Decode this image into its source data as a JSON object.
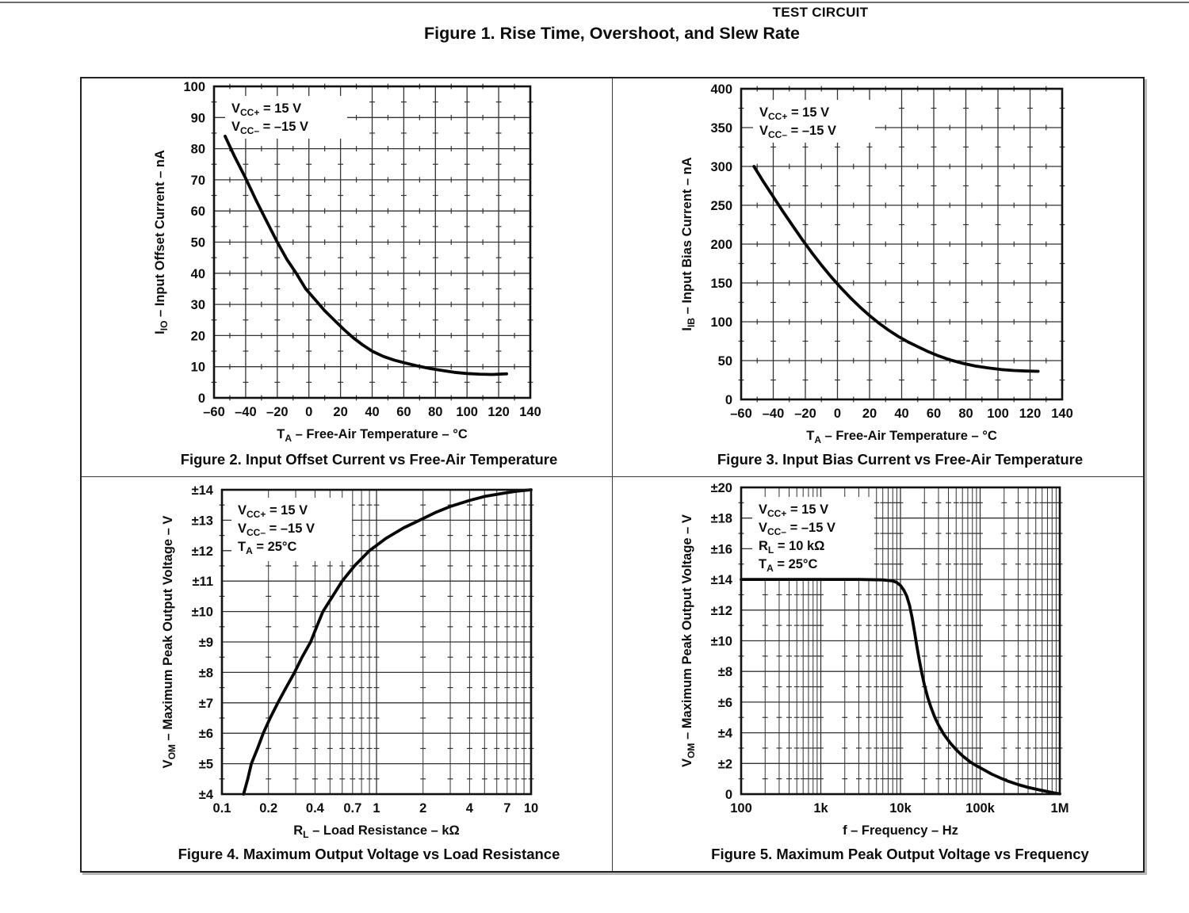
{
  "page": {
    "section_label": "TEST CIRCUIT",
    "figure1_title": "Figure 1. Rise Time, Overshoot, and Slew Rate"
  },
  "chart_data": [
    {
      "id": "figure2",
      "type": "line",
      "title": "Figure 2. Input Offset Current vs Free-Air Temperature",
      "xlabel": "T_{A} – Free-Air Temperature – °C",
      "ylabel": "I_{IO} – Input Offset Current – nA",
      "annotations": [
        "V_{CC+} = 15 V",
        "V_{CC–} = –15 V"
      ],
      "x_axis": {
        "scale": "linear",
        "min": -60,
        "max": 140,
        "ticks": [
          {
            "v": -60,
            "label": "–60"
          },
          {
            "v": -40,
            "label": "–40"
          },
          {
            "v": -20,
            "label": "–20"
          },
          {
            "v": 0,
            "label": "0"
          },
          {
            "v": 20,
            "label": "20"
          },
          {
            "v": 40,
            "label": "40"
          },
          {
            "v": 60,
            "label": "60"
          },
          {
            "v": 80,
            "label": "80"
          },
          {
            "v": 100,
            "label": "100"
          },
          {
            "v": 120,
            "label": "120"
          },
          {
            "v": 140,
            "label": "140"
          }
        ]
      },
      "y_axis": {
        "scale": "linear",
        "min": 0,
        "max": 100,
        "ticks": [
          {
            "v": 0,
            "label": "0"
          },
          {
            "v": 10,
            "label": "10"
          },
          {
            "v": 20,
            "label": "20"
          },
          {
            "v": 30,
            "label": "30"
          },
          {
            "v": 40,
            "label": "40"
          },
          {
            "v": 50,
            "label": "50"
          },
          {
            "v": 60,
            "label": "60"
          },
          {
            "v": 70,
            "label": "70"
          },
          {
            "v": 80,
            "label": "80"
          },
          {
            "v": 90,
            "label": "90"
          },
          {
            "v": 100,
            "label": "100"
          }
        ]
      },
      "series": [
        {
          "name": "input offset current",
          "points": [
            [
              -53,
              84
            ],
            [
              -47,
              77.5
            ],
            [
              -40,
              70.5
            ],
            [
              -33,
              63
            ],
            [
              -27,
              57
            ],
            [
              -20,
              50
            ],
            [
              -14,
              44.5
            ],
            [
              -8,
              40
            ],
            [
              -2,
              35
            ],
            [
              4,
              31.5
            ],
            [
              10,
              28
            ],
            [
              16,
              25
            ],
            [
              22,
              22
            ],
            [
              28,
              19.3
            ],
            [
              34,
              17
            ],
            [
              40,
              15
            ],
            [
              47,
              13.3
            ],
            [
              54,
              12.1
            ],
            [
              60,
              11.3
            ],
            [
              68,
              10.3
            ],
            [
              76,
              9.5
            ],
            [
              84,
              8.8
            ],
            [
              92,
              8.2
            ],
            [
              100,
              7.8
            ],
            [
              108,
              7.6
            ],
            [
              116,
              7.5
            ],
            [
              125,
              7.7
            ]
          ]
        }
      ]
    },
    {
      "id": "figure3",
      "type": "line",
      "title": "Figure 3. Input Bias Current vs Free-Air Temperature",
      "xlabel": "T_{A} – Free-Air Temperature – °C",
      "ylabel": "I_{IB} – Input Bias Current – nA",
      "annotations": [
        "V_{CC+} = 15 V",
        "V_{CC–} = –15 V"
      ],
      "x_axis": {
        "scale": "linear",
        "min": -60,
        "max": 140,
        "ticks": [
          {
            "v": -60,
            "label": "–60"
          },
          {
            "v": -40,
            "label": "–40"
          },
          {
            "v": -20,
            "label": "–20"
          },
          {
            "v": 0,
            "label": "0"
          },
          {
            "v": 20,
            "label": "20"
          },
          {
            "v": 40,
            "label": "40"
          },
          {
            "v": 60,
            "label": "60"
          },
          {
            "v": 80,
            "label": "80"
          },
          {
            "v": 100,
            "label": "100"
          },
          {
            "v": 120,
            "label": "120"
          },
          {
            "v": 140,
            "label": "140"
          }
        ]
      },
      "y_axis": {
        "scale": "linear",
        "min": 0,
        "max": 400,
        "ticks": [
          {
            "v": 0,
            "label": "0"
          },
          {
            "v": 50,
            "label": "50"
          },
          {
            "v": 100,
            "label": "100"
          },
          {
            "v": 150,
            "label": "150"
          },
          {
            "v": 200,
            "label": "200"
          },
          {
            "v": 250,
            "label": "250"
          },
          {
            "v": 300,
            "label": "300"
          },
          {
            "v": 350,
            "label": "350"
          },
          {
            "v": 400,
            "label": "400"
          }
        ]
      },
      "series": [
        {
          "name": "input bias current",
          "points": [
            [
              -52,
              300
            ],
            [
              -46,
              280
            ],
            [
              -40,
              261
            ],
            [
              -34,
              242
            ],
            [
              -28,
              224
            ],
            [
              -22,
              206
            ],
            [
              -16,
              189
            ],
            [
              -10,
              173
            ],
            [
              -4,
              158
            ],
            [
              2,
              144
            ],
            [
              8,
              131
            ],
            [
              14,
              119
            ],
            [
              20,
              108
            ],
            [
              26,
              98
            ],
            [
              32,
              89
            ],
            [
              38,
              81
            ],
            [
              44,
              74
            ],
            [
              50,
              68
            ],
            [
              56,
              62
            ],
            [
              63,
              56
            ],
            [
              70,
              51
            ],
            [
              78,
              46.5
            ],
            [
              86,
              43
            ],
            [
              94,
              40.5
            ],
            [
              102,
              38.5
            ],
            [
              110,
              37.2
            ],
            [
              118,
              36.5
            ],
            [
              125,
              36.2
            ]
          ]
        }
      ]
    },
    {
      "id": "figure4",
      "type": "line",
      "title": "Figure 4. Maximum Output Voltage vs Load Resistance",
      "xlabel": "R_{L} – Load Resistance – kΩ",
      "ylabel": "V_{OM} – Maximum Peak Output Voltage – V",
      "annotations": [
        "V_{CC+} = 15 V",
        "V_{CC–} = –15 V",
        "T_{A} = 25°C"
      ],
      "x_axis": {
        "scale": "log",
        "min": 0.1,
        "max": 10,
        "ticks": [
          {
            "v": 0.1,
            "label": "0.1"
          },
          {
            "v": 0.2,
            "label": "0.2"
          },
          {
            "v": 0.4,
            "label": "0.4"
          },
          {
            "v": 0.7,
            "label": "0.7"
          },
          {
            "v": 1,
            "label": "1"
          },
          {
            "v": 2,
            "label": "2"
          },
          {
            "v": 4,
            "label": "4"
          },
          {
            "v": 7,
            "label": "7"
          },
          {
            "v": 10,
            "label": "10"
          }
        ]
      },
      "y_axis": {
        "scale": "linear",
        "min": 4,
        "max": 14,
        "ticks": [
          {
            "v": 4,
            "label": "±4"
          },
          {
            "v": 5,
            "label": "±5"
          },
          {
            "v": 6,
            "label": "±6"
          },
          {
            "v": 7,
            "label": "±7"
          },
          {
            "v": 8,
            "label": "±8"
          },
          {
            "v": 9,
            "label": "±9"
          },
          {
            "v": 10,
            "label": "±10"
          },
          {
            "v": 11,
            "label": "±11"
          },
          {
            "v": 12,
            "label": "±12"
          },
          {
            "v": 13,
            "label": "±13"
          },
          {
            "v": 14,
            "label": "±14"
          }
        ]
      },
      "series": [
        {
          "name": "maximum output voltage",
          "points": [
            [
              0.138,
              4
            ],
            [
              0.147,
              4.5
            ],
            [
              0.155,
              5
            ],
            [
              0.17,
              5.5
            ],
            [
              0.185,
              6
            ],
            [
              0.205,
              6.5
            ],
            [
              0.23,
              7
            ],
            [
              0.26,
              7.5
            ],
            [
              0.295,
              8
            ],
            [
              0.33,
              8.5
            ],
            [
              0.375,
              9
            ],
            [
              0.41,
              9.5
            ],
            [
              0.45,
              10
            ],
            [
              0.52,
              10.5
            ],
            [
              0.6,
              11
            ],
            [
              0.72,
              11.5
            ],
            [
              0.9,
              12
            ],
            [
              1.15,
              12.4
            ],
            [
              1.5,
              12.75
            ],
            [
              1.9,
              13
            ],
            [
              2.4,
              13.25
            ],
            [
              3,
              13.45
            ],
            [
              4,
              13.65
            ],
            [
              5,
              13.78
            ],
            [
              6.5,
              13.88
            ],
            [
              8,
              13.95
            ],
            [
              10,
              14
            ]
          ]
        }
      ]
    },
    {
      "id": "figure5",
      "type": "line",
      "title": "Figure 5. Maximum Peak Output Voltage vs Frequency",
      "xlabel": "f – Frequency – Hz",
      "ylabel": "V_{OM} – Maximum Peak Output Voltage – V",
      "annotations": [
        "V_{CC+} = 15 V",
        "V_{CC–} = –15 V",
        "R_{L} = 10 kΩ",
        "T_{A} = 25°C"
      ],
      "x_axis": {
        "scale": "log",
        "min": 100,
        "max": 1000000,
        "ticks": [
          {
            "v": 100,
            "label": "100"
          },
          {
            "v": 1000,
            "label": "1k"
          },
          {
            "v": 10000,
            "label": "10k"
          },
          {
            "v": 100000,
            "label": "100k"
          },
          {
            "v": 1000000,
            "label": "1M"
          }
        ]
      },
      "y_axis": {
        "scale": "linear",
        "min": 0,
        "max": 20,
        "ticks": [
          {
            "v": 0,
            "label": "0"
          },
          {
            "v": 2,
            "label": "±2"
          },
          {
            "v": 4,
            "label": "±4"
          },
          {
            "v": 6,
            "label": "±6"
          },
          {
            "v": 8,
            "label": "±8"
          },
          {
            "v": 10,
            "label": "±10"
          },
          {
            "v": 12,
            "label": "±12"
          },
          {
            "v": 14,
            "label": "±14"
          },
          {
            "v": 16,
            "label": "±16"
          },
          {
            "v": 18,
            "label": "±18"
          },
          {
            "v": 20,
            "label": "±20"
          }
        ]
      },
      "series": [
        {
          "name": "maximum peak output voltage",
          "points": [
            [
              100,
              14
            ],
            [
              3000,
              14
            ],
            [
              6000,
              13.97
            ],
            [
              8000,
              13.9
            ],
            [
              9000,
              13.8
            ],
            [
              10000,
              13.6
            ],
            [
              11000,
              13.3
            ],
            [
              12000,
              12.9
            ],
            [
              13000,
              12.3
            ],
            [
              14000,
              11.5
            ],
            [
              15000,
              10.6
            ],
            [
              16000,
              9.7
            ],
            [
              17000,
              8.9
            ],
            [
              18500,
              7.9
            ],
            [
              20000,
              7.1
            ],
            [
              22000,
              6.3
            ],
            [
              24000,
              5.7
            ],
            [
              27000,
              5.0
            ],
            [
              30000,
              4.5
            ],
            [
              35000,
              3.9
            ],
            [
              42000,
              3.35
            ],
            [
              50000,
              2.9
            ],
            [
              60000,
              2.5
            ],
            [
              75000,
              2.1
            ],
            [
              90000,
              1.85
            ],
            [
              110000,
              1.6
            ],
            [
              140000,
              1.3
            ],
            [
              180000,
              1.05
            ],
            [
              230000,
              0.82
            ],
            [
              300000,
              0.62
            ],
            [
              400000,
              0.44
            ],
            [
              550000,
              0.28
            ],
            [
              700000,
              0.17
            ],
            [
              850000,
              0.08
            ],
            [
              1000000,
              0.02
            ]
          ]
        }
      ]
    }
  ]
}
